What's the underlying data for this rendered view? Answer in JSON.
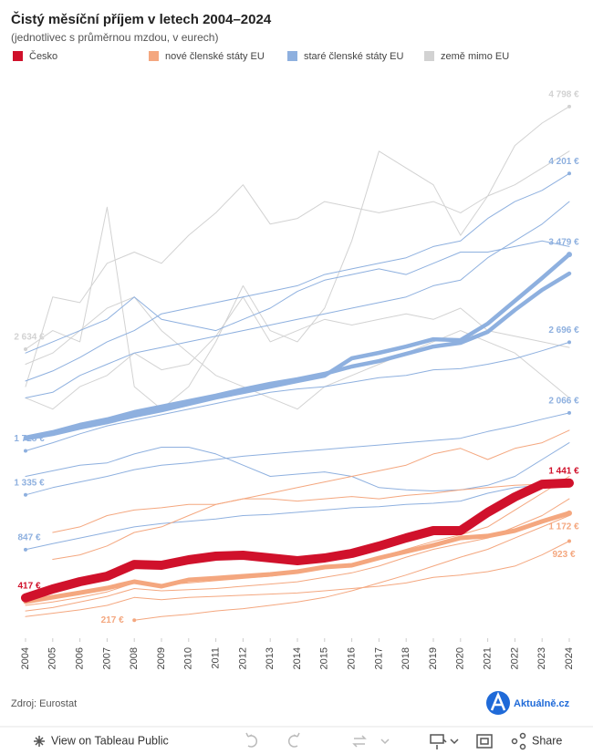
{
  "chart_data": {
    "type": "line",
    "title": "Čistý měsíční příjem v letech 2004–2024",
    "subtitle": "(jednotlivec s průměrnou mzdou, v eurech)",
    "legend": [
      {
        "name": "Česko",
        "color": "#d0112b"
      },
      {
        "name": "nové členské státy EU",
        "color": "#f4a77f"
      },
      {
        "name": "staré členské státy EU",
        "color": "#8eb0df"
      },
      {
        "name": "země mimo EU",
        "color": "#d2d2d2"
      }
    ],
    "x": [
      2004,
      2005,
      2006,
      2007,
      2008,
      2009,
      2010,
      2011,
      2012,
      2013,
      2014,
      2015,
      2016,
      2017,
      2018,
      2019,
      2020,
      2021,
      2022,
      2023,
      2024
    ],
    "xlim": [
      2004,
      2024
    ],
    "xticks": [
      2004,
      2005,
      2006,
      2007,
      2008,
      2009,
      2010,
      2011,
      2012,
      2013,
      2014,
      2015,
      2016,
      2017,
      2018,
      2019,
      2020,
      2021,
      2022,
      2023,
      2024
    ],
    "ylim": [
      0,
      5000
    ],
    "series": [
      {
        "color": "#d2d2d2",
        "values": [
          2634,
          2800,
          2700,
          3900,
          2300,
          2100,
          2300,
          2700,
          3200,
          2800,
          2700,
          3000,
          3600,
          4400,
          4250,
          4100,
          3650,
          4000,
          4450,
          4650,
          4798
        ],
        "value_labels": [
          "2 634 €",
          null,
          null,
          null,
          null,
          null,
          null,
          null,
          null,
          null,
          null,
          null,
          null,
          null,
          null,
          null,
          null,
          null,
          null,
          null,
          "4 798 €"
        ]
      },
      {
        "color": "#d2d2d2",
        "values": [
          2300,
          3100,
          3050,
          3400,
          3500,
          3400,
          3650,
          3850,
          4100,
          3750,
          3800,
          3950,
          3900,
          3850,
          3900,
          3950,
          3850,
          4000,
          4100,
          4250,
          4400
        ]
      },
      {
        "color": "#d2d2d2",
        "values": [
          2500,
          2600,
          2800,
          3000,
          3100,
          2800,
          2600,
          2400,
          2300,
          2200,
          2100,
          2300,
          2400,
          2500,
          2600,
          2700,
          2800,
          2700,
          2600,
          2400,
          2200
        ]
      },
      {
        "color": "#d2d2d2",
        "values": [
          2200,
          2100,
          2300,
          2400,
          2600,
          2450,
          2500,
          2750,
          3100,
          2700,
          2800,
          2900,
          2850,
          2900,
          2950,
          2900,
          3000,
          2800,
          2750,
          2700,
          2650
        ]
      },
      {
        "color": "#8eb0df",
        "values": [
          2350,
          2440,
          2560,
          2700,
          2800,
          2950,
          3000,
          3050,
          3100,
          3150,
          3200,
          3300,
          3350,
          3400,
          3450,
          3550,
          3600,
          3800,
          3950,
          4050,
          4201
        ],
        "value_labels": [
          null,
          null,
          null,
          null,
          null,
          null,
          null,
          null,
          null,
          null,
          null,
          null,
          null,
          null,
          null,
          null,
          null,
          null,
          null,
          null,
          "4 201 €"
        ]
      },
      {
        "color": "#8eb0df",
        "values": [
          2200,
          2250,
          2400,
          2500,
          2600,
          2650,
          2700,
          2750,
          2800,
          2850,
          2900,
          2950,
          3000,
          3050,
          3100,
          3200,
          3250,
          3450,
          3600,
          3750,
          3950
        ]
      },
      {
        "color": "#8eb0df",
        "values": [
          2600,
          2700,
          2800,
          2900,
          3100,
          2900,
          2850,
          2800,
          2900,
          3000,
          3150,
          3250,
          3300,
          3350,
          3300,
          3400,
          3500,
          3500,
          3550,
          3600,
          3550
        ]
      },
      {
        "color": "#8eb0df",
        "values": [
          1728,
          1800,
          1880,
          1950,
          2000,
          2050,
          2100,
          2150,
          2200,
          2250,
          2280,
          2300,
          2340,
          2380,
          2400,
          2450,
          2460,
          2500,
          2550,
          2620,
          2696
        ],
        "value_labels": [
          "1 728 €",
          null,
          null,
          null,
          null,
          null,
          null,
          null,
          null,
          null,
          null,
          null,
          null,
          null,
          null,
          null,
          null,
          null,
          null,
          null,
          "2 696 €"
        ]
      },
      {
        "color": "#8eb0df",
        "values": [
          1335,
          1400,
          1450,
          1500,
          1560,
          1600,
          1620,
          1650,
          1680,
          1700,
          1720,
          1740,
          1760,
          1780,
          1800,
          1820,
          1840,
          1900,
          1950,
          2010,
          2066
        ],
        "value_labels": [
          "1 335 €",
          null,
          null,
          null,
          null,
          null,
          null,
          null,
          null,
          null,
          null,
          null,
          null,
          null,
          null,
          null,
          null,
          null,
          null,
          null,
          "2 066 €"
        ]
      },
      {
        "color": "#8eb0df",
        "values": [
          1500,
          1550,
          1600,
          1620,
          1700,
          1760,
          1760,
          1700,
          1600,
          1500,
          1520,
          1540,
          1500,
          1400,
          1380,
          1370,
          1380,
          1420,
          1500,
          1650,
          1800
        ]
      },
      {
        "color": "#8eb0df",
        "values": [
          847,
          900,
          950,
          1000,
          1050,
          1080,
          1100,
          1120,
          1150,
          1160,
          1180,
          1200,
          1220,
          1230,
          1250,
          1260,
          1280,
          1350,
          1400,
          1420,
          1450
        ],
        "value_labels": [
          "847 €",
          null,
          null,
          null,
          null,
          null,
          null,
          null,
          null,
          null,
          null,
          null,
          null,
          null,
          null,
          null,
          null,
          null,
          null,
          null,
          null
        ]
      },
      {
        "color": "#8eb0df",
        "values": [
          1837,
          1878,
          1935,
          1984,
          2041,
          2089,
          2146,
          2203,
          2252,
          2301,
          2350,
          2398,
          2553,
          2602,
          2658,
          2723,
          2715,
          2862,
          3065,
          3268,
          3479
        ],
        "value_labels": [
          null,
          null,
          null,
          null,
          null,
          null,
          null,
          null,
          null,
          null,
          null,
          null,
          null,
          null,
          null,
          null,
          null,
          null,
          null,
          null,
          "3 479 €"
        ]
      },
      {
        "color": "#8eb0df",
        "values": [
          1846,
          1894,
          1959,
          2008,
          2073,
          2122,
          2171,
          2220,
          2276,
          2325,
          2366,
          2415,
          2480,
          2528,
          2593,
          2658,
          2691,
          2789,
          2984,
          3163,
          3309
        ]
      },
      {
        "color": "#f4a77f",
        "values": [
          null,
          760,
          800,
          880,
          1000,
          1050,
          1150,
          1250,
          1300,
          1350,
          1400,
          1450,
          1500,
          1550,
          1600,
          1700,
          1750,
          1650,
          1750,
          1800,
          1911
        ]
      },
      {
        "color": "#f4a77f",
        "values": [
          null,
          1000,
          1050,
          1150,
          1200,
          1220,
          1250,
          1250,
          1300,
          1300,
          1280,
          1300,
          1320,
          1300,
          1330,
          1350,
          1380,
          1400,
          1420,
          1430,
          1400
        ]
      },
      {
        "color": "#f4a77f",
        "values": [
          null,
          null,
          null,
          null,
          217,
          250,
          270,
          300,
          320,
          350,
          380,
          420,
          480,
          550,
          620,
          700,
          780,
          850,
          950,
          1050,
          1150
        ],
        "value_labels": [
          null,
          null,
          null,
          null,
          "217 €",
          null,
          null,
          null,
          null,
          null,
          null,
          null,
          null,
          null,
          null,
          null,
          null,
          null,
          null,
          null,
          null
        ]
      },
      {
        "color": "#f4a77f",
        "values": [
          250,
          280,
          310,
          350,
          420,
          400,
          420,
          430,
          440,
          450,
          460,
          480,
          500,
          520,
          550,
          600,
          620,
          650,
          700,
          800,
          923
        ],
        "value_labels": [
          null,
          null,
          null,
          null,
          null,
          null,
          null,
          null,
          null,
          null,
          null,
          null,
          null,
          null,
          null,
          null,
          null,
          null,
          null,
          null,
          "923 €"
        ]
      },
      {
        "color": "#f4a77f",
        "values": [
          300,
          330,
          380,
          430,
          500,
          480,
          490,
          500,
          520,
          540,
          560,
          600,
          640,
          700,
          780,
          850,
          900,
          950,
          1050,
          1150,
          1300
        ]
      },
      {
        "color": "#f4a77f",
        "values": [
          350,
          380,
          420,
          470,
          550,
          530,
          550,
          570,
          590,
          610,
          640,
          680,
          720,
          780,
          850,
          920,
          980,
          1050,
          1200,
          1350,
          1500
        ]
      },
      {
        "color": "#f4a77f",
        "values": [
          382,
          423,
          463,
          504,
          561,
          520,
          577,
          593,
          610,
          626,
          650,
          691,
          707,
          772,
          829,
          886,
          951,
          968,
          1016,
          1098,
          1172
        ],
        "value_labels": [
          null,
          null,
          null,
          null,
          null,
          null,
          null,
          null,
          null,
          null,
          null,
          null,
          null,
          null,
          null,
          null,
          null,
          null,
          null,
          null,
          "1 172 €"
        ]
      },
      {
        "color": "#d0112b",
        "values": [
          417,
          496,
          561,
          610,
          715,
          707,
          756,
          789,
          797,
          772,
          748,
          772,
          813,
          878,
          951,
          1016,
          1016,
          1179,
          1317,
          1430,
          1441
        ],
        "value_labels": [
          "417 €",
          null,
          null,
          null,
          null,
          null,
          null,
          null,
          null,
          null,
          null,
          null,
          null,
          null,
          null,
          null,
          null,
          null,
          null,
          null,
          "1 441 €"
        ]
      }
    ]
  },
  "source": "Zdroj: Eurostat",
  "logo": "Aktuálně.cz",
  "toolbar": {
    "view": "View on Tableau Public",
    "share": "Share"
  }
}
